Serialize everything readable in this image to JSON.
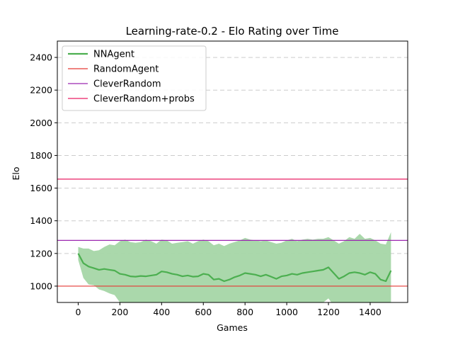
{
  "chart_data": {
    "type": "line",
    "title": "Learning-rate-0.2 - Elo Rating over Time",
    "xlabel": "Games",
    "ylabel": "Elo",
    "xlim": [
      -100,
      1580
    ],
    "ylim": [
      900,
      2500
    ],
    "xticks": [
      0,
      200,
      400,
      600,
      800,
      1000,
      1200,
      1400
    ],
    "yticks": [
      1000,
      1200,
      1400,
      1600,
      1800,
      2000,
      2200,
      2400
    ],
    "grid": "horizontal dashed",
    "legend_position": "top-left",
    "colors": {
      "NNAgent": "#4caf50",
      "NNAgent_band": "#a5d6a7",
      "RandomAgent": "#e53935",
      "CleverRandom": "#9c27b0",
      "CleverRandom+probs": "#e91e63"
    },
    "series": [
      {
        "name": "NNAgent",
        "kind": "line_with_band",
        "x": [
          0,
          25,
          50,
          75,
          100,
          125,
          150,
          175,
          200,
          225,
          250,
          275,
          300,
          325,
          350,
          375,
          400,
          425,
          450,
          475,
          500,
          525,
          550,
          575,
          600,
          625,
          650,
          675,
          700,
          725,
          750,
          775,
          800,
          825,
          850,
          875,
          900,
          925,
          950,
          975,
          1000,
          1025,
          1050,
          1075,
          1100,
          1125,
          1150,
          1175,
          1200,
          1225,
          1250,
          1275,
          1300,
          1325,
          1350,
          1375,
          1400,
          1425,
          1450,
          1475,
          1500
        ],
        "values": [
          1200,
          1140,
          1120,
          1110,
          1100,
          1105,
          1100,
          1095,
          1075,
          1070,
          1060,
          1058,
          1062,
          1060,
          1065,
          1070,
          1090,
          1085,
          1075,
          1070,
          1060,
          1065,
          1058,
          1060,
          1075,
          1070,
          1040,
          1045,
          1030,
          1040,
          1055,
          1065,
          1080,
          1075,
          1070,
          1060,
          1070,
          1058,
          1045,
          1060,
          1065,
          1075,
          1070,
          1080,
          1085,
          1090,
          1095,
          1100,
          1115,
          1080,
          1045,
          1060,
          1080,
          1085,
          1080,
          1070,
          1085,
          1075,
          1040,
          1030,
          1095
        ],
        "upper": [
          1240,
          1230,
          1230,
          1215,
          1220,
          1240,
          1255,
          1250,
          1275,
          1285,
          1270,
          1265,
          1270,
          1285,
          1275,
          1260,
          1285,
          1280,
          1260,
          1265,
          1270,
          1275,
          1260,
          1275,
          1285,
          1275,
          1250,
          1260,
          1245,
          1260,
          1270,
          1280,
          1295,
          1285,
          1280,
          1275,
          1280,
          1270,
          1260,
          1265,
          1280,
          1290,
          1275,
          1285,
          1290,
          1285,
          1290,
          1290,
          1300,
          1280,
          1260,
          1275,
          1300,
          1290,
          1320,
          1290,
          1295,
          1280,
          1260,
          1255,
          1330
        ],
        "lower": [
          1160,
          1050,
          1010,
          1005,
          980,
          970,
          955,
          945,
          900,
          880,
          865,
          855,
          865,
          860,
          870,
          875,
          895,
          890,
          880,
          875,
          850,
          860,
          855,
          855,
          865,
          855,
          830,
          835,
          815,
          825,
          840,
          850,
          865,
          860,
          855,
          840,
          855,
          845,
          830,
          850,
          850,
          860,
          860,
          870,
          880,
          885,
          895,
          900,
          925,
          880,
          830,
          850,
          865,
          870,
          845,
          850,
          870,
          860,
          830,
          815,
          875
        ]
      },
      {
        "name": "RandomAgent",
        "kind": "hline",
        "value": 1000
      },
      {
        "name": "CleverRandom",
        "kind": "hline",
        "value": 1280
      },
      {
        "name": "CleverRandom+probs",
        "kind": "hline",
        "value": 1655
      }
    ]
  }
}
